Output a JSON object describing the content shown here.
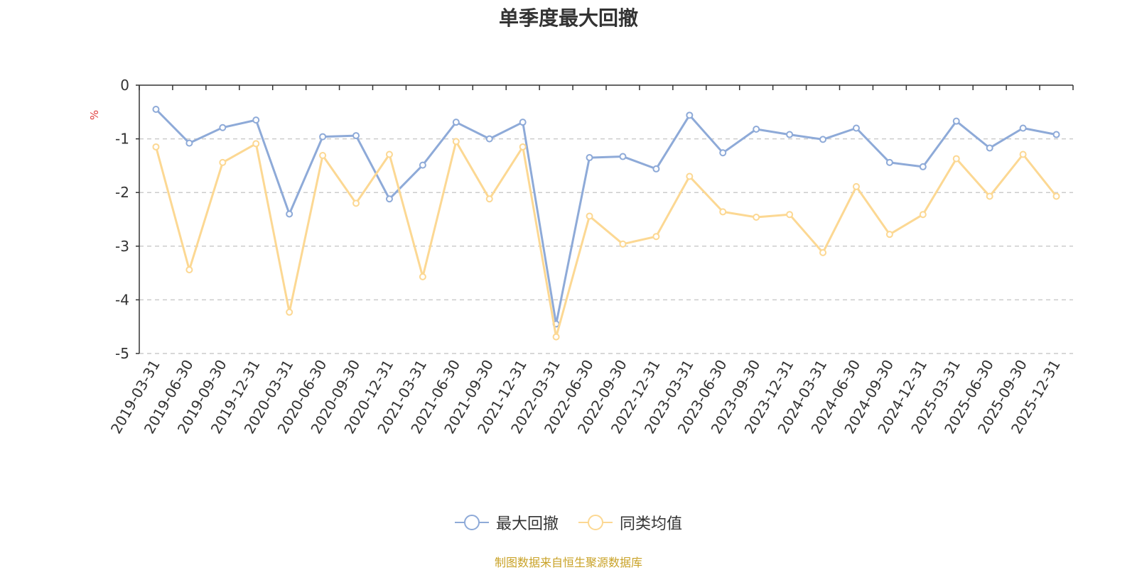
{
  "chart_data": {
    "type": "line",
    "title": "单季度最大回撤",
    "ylabel": "%",
    "ylim": [
      -5,
      0
    ],
    "yticks": [
      0,
      -1,
      -2,
      -3,
      -4,
      -5
    ],
    "grid": true,
    "legend_position": "bottom",
    "categories": [
      "2019-03-31",
      "2019-06-30",
      "2019-09-30",
      "2019-12-31",
      "2020-03-31",
      "2020-06-30",
      "2020-09-30",
      "2020-12-31",
      "2021-03-31",
      "2021-06-30",
      "2021-09-30",
      "2021-12-31",
      "2022-03-31",
      "2022-06-30",
      "2022-09-30",
      "2022-12-31",
      "2023-03-31",
      "2023-06-30",
      "2023-09-30",
      "2023-12-31",
      "2024-03-31",
      "2024-06-30",
      "2024-09-30",
      "2024-12-31",
      "2025-03-31",
      "2025-06-30",
      "2025-09-30",
      "2025-12-31"
    ],
    "series": [
      {
        "name": "最大回撤",
        "color": "#8eaad8",
        "values": [
          -0.45,
          -1.08,
          -0.79,
          -0.65,
          -2.4,
          -0.96,
          -0.94,
          -2.12,
          -1.49,
          -0.69,
          -1.0,
          -0.69,
          -4.45,
          -1.35,
          -1.33,
          -1.56,
          -0.56,
          -1.26,
          -0.82,
          -0.92,
          -1.01,
          -0.8,
          -1.44,
          -1.52,
          -0.67,
          -1.17,
          -0.8,
          -0.92
        ]
      },
      {
        "name": "同类均值",
        "color": "#fcd893",
        "values": [
          -1.15,
          -3.44,
          -1.44,
          -1.09,
          -4.23,
          -1.31,
          -2.2,
          -1.29,
          -3.57,
          -1.05,
          -2.12,
          -1.15,
          -4.69,
          -2.44,
          -2.96,
          -2.82,
          -1.7,
          -2.36,
          -2.46,
          -2.41,
          -3.12,
          -1.89,
          -2.78,
          -2.41,
          -1.37,
          -2.07,
          -1.29,
          -2.07
        ]
      }
    ]
  },
  "axis": {
    "ylabel_color": "#e03c3c"
  },
  "footer": {
    "source": "制图数据来自恒生聚源数据库"
  }
}
